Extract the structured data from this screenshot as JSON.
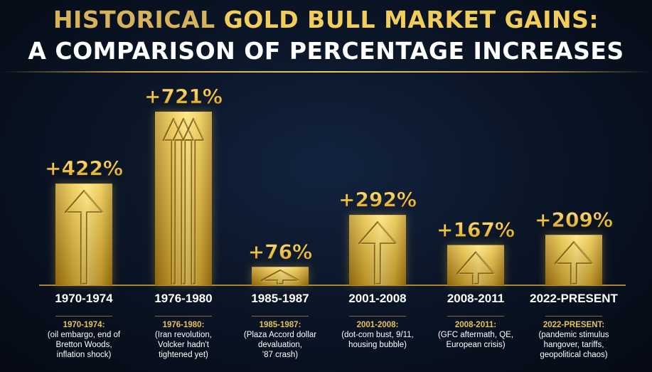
{
  "header": {
    "title_line1_prefix": "HISTORICAL ",
    "title_line1_highlight": "GOLD BULL MARKET GAINS:",
    "title_line2": "A COMPARISON OF PERCENTAGE INCREASES"
  },
  "colors": {
    "gold": "#e8be3c",
    "gold_dark": "#a87c14",
    "gold_light": "#ffe27a",
    "title_gold": "#d8b25a",
    "background": "#0b1628"
  },
  "chart_data": {
    "type": "bar",
    "categories": [
      "1970-1974",
      "1976-1980",
      "1985-1987",
      "2001-2008",
      "2008-2011",
      "2022-PRESENT"
    ],
    "values": [
      422,
      721,
      76,
      292,
      167,
      209
    ],
    "value_labels": [
      "+422%",
      "+721%",
      "+76%",
      "+292%",
      "+167%",
      "+209%"
    ],
    "descriptions": [
      {
        "head": "1970-1974:",
        "lines": [
          "(oil embargo, end of",
          "Bretton Woods,",
          "inflation shock)"
        ]
      },
      {
        "head": "1976-1980:",
        "lines": [
          "(Iran revolution,",
          "Volcker hadn't",
          "tightened yet)"
        ]
      },
      {
        "head": "1985-1987:",
        "lines": [
          "(Plaza Accord dollar",
          "devaluation,",
          "'87 crash)"
        ]
      },
      {
        "head": "2001-2008:",
        "lines": [
          "(dot-com bust, 9/11,",
          "housing bubble)"
        ]
      },
      {
        "head": "2008-2011:",
        "lines": [
          "(GFC aftermath, QE,",
          "European crisis)"
        ]
      },
      {
        "head": "2022-PRESENT:",
        "lines": [
          "(pandemic stimulus",
          "hangover, tariffs,",
          "geopolitical chaos)"
        ]
      }
    ],
    "title": "HISTORICAL GOLD BULL MARKET GAINS: A COMPARISON OF PERCENTAGE INCREASES",
    "xlabel": "",
    "ylabel": "",
    "ylim": [
      0,
      721
    ],
    "grid": false,
    "legend": "none"
  }
}
